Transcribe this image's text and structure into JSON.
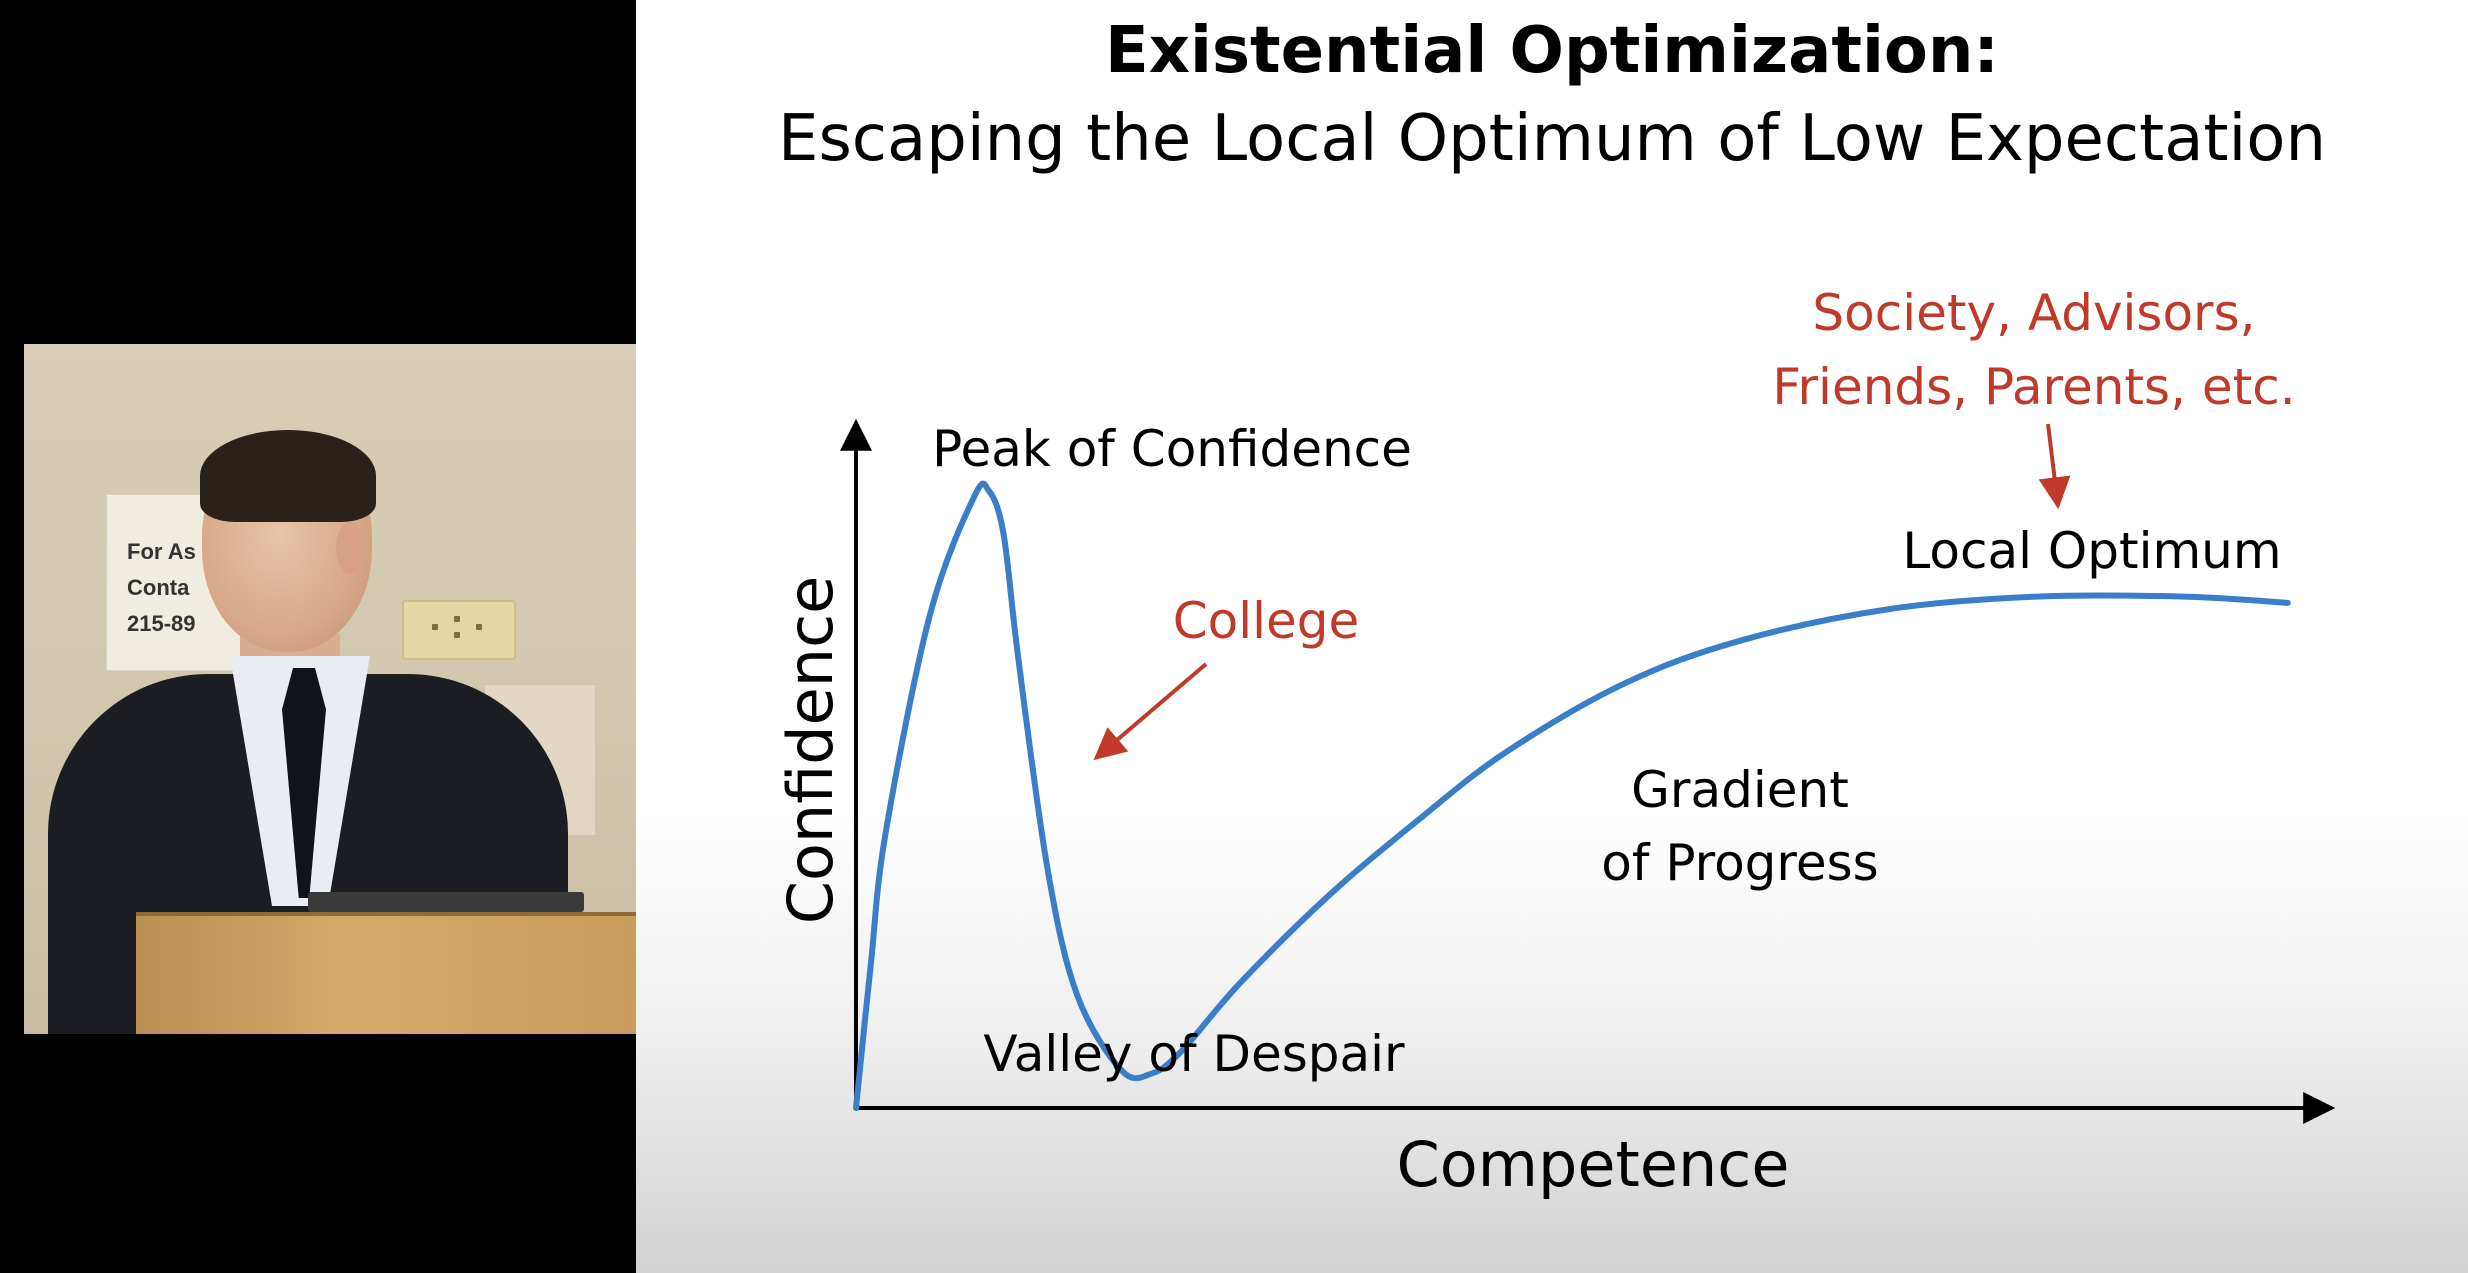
{
  "video": {
    "sign_lines": [
      "For As",
      "Conta",
      "215-89"
    ]
  },
  "slide": {
    "title": "Existential Optimization:",
    "subtitle": "Escaping the Local Optimum of Low Expectation"
  },
  "chart_data": {
    "type": "line",
    "xlabel": "Competence",
    "ylabel": "Confidence",
    "annotations": {
      "peak": "Peak of Confidence",
      "valley": "Valley of Despair",
      "gradient_line1": "Gradient",
      "gradient_line2": "of Progress",
      "local_optimum": "Local Optimum",
      "college": "College",
      "society_line1": "Society, Advisors,",
      "society_line2": "Friends, Parents, etc."
    },
    "series": [
      {
        "x": [
          0,
          0.01,
          0.02,
          0.05,
          0.08,
          0.09,
          0.1,
          0.11,
          0.13,
          0.15,
          0.18,
          0.2,
          0.22,
          0.26,
          0.32,
          0.38,
          0.44,
          0.52,
          0.6,
          0.7,
          0.8,
          0.9,
          0.97
        ],
        "y": [
          0,
          0.23,
          0.44,
          0.79,
          0.98,
          0.99,
          0.92,
          0.72,
          0.38,
          0.18,
          0.06,
          0.055,
          0.09,
          0.2,
          0.34,
          0.46,
          0.57,
          0.68,
          0.75,
          0.8,
          0.82,
          0.82,
          0.81
        ]
      }
    ],
    "xlim": [
      0,
      1
    ],
    "ylim": [
      0,
      1.1
    ],
    "colors": {
      "curve": "#3a7dc9",
      "annotation_red": "#c0392b",
      "axis": "#000000"
    }
  }
}
